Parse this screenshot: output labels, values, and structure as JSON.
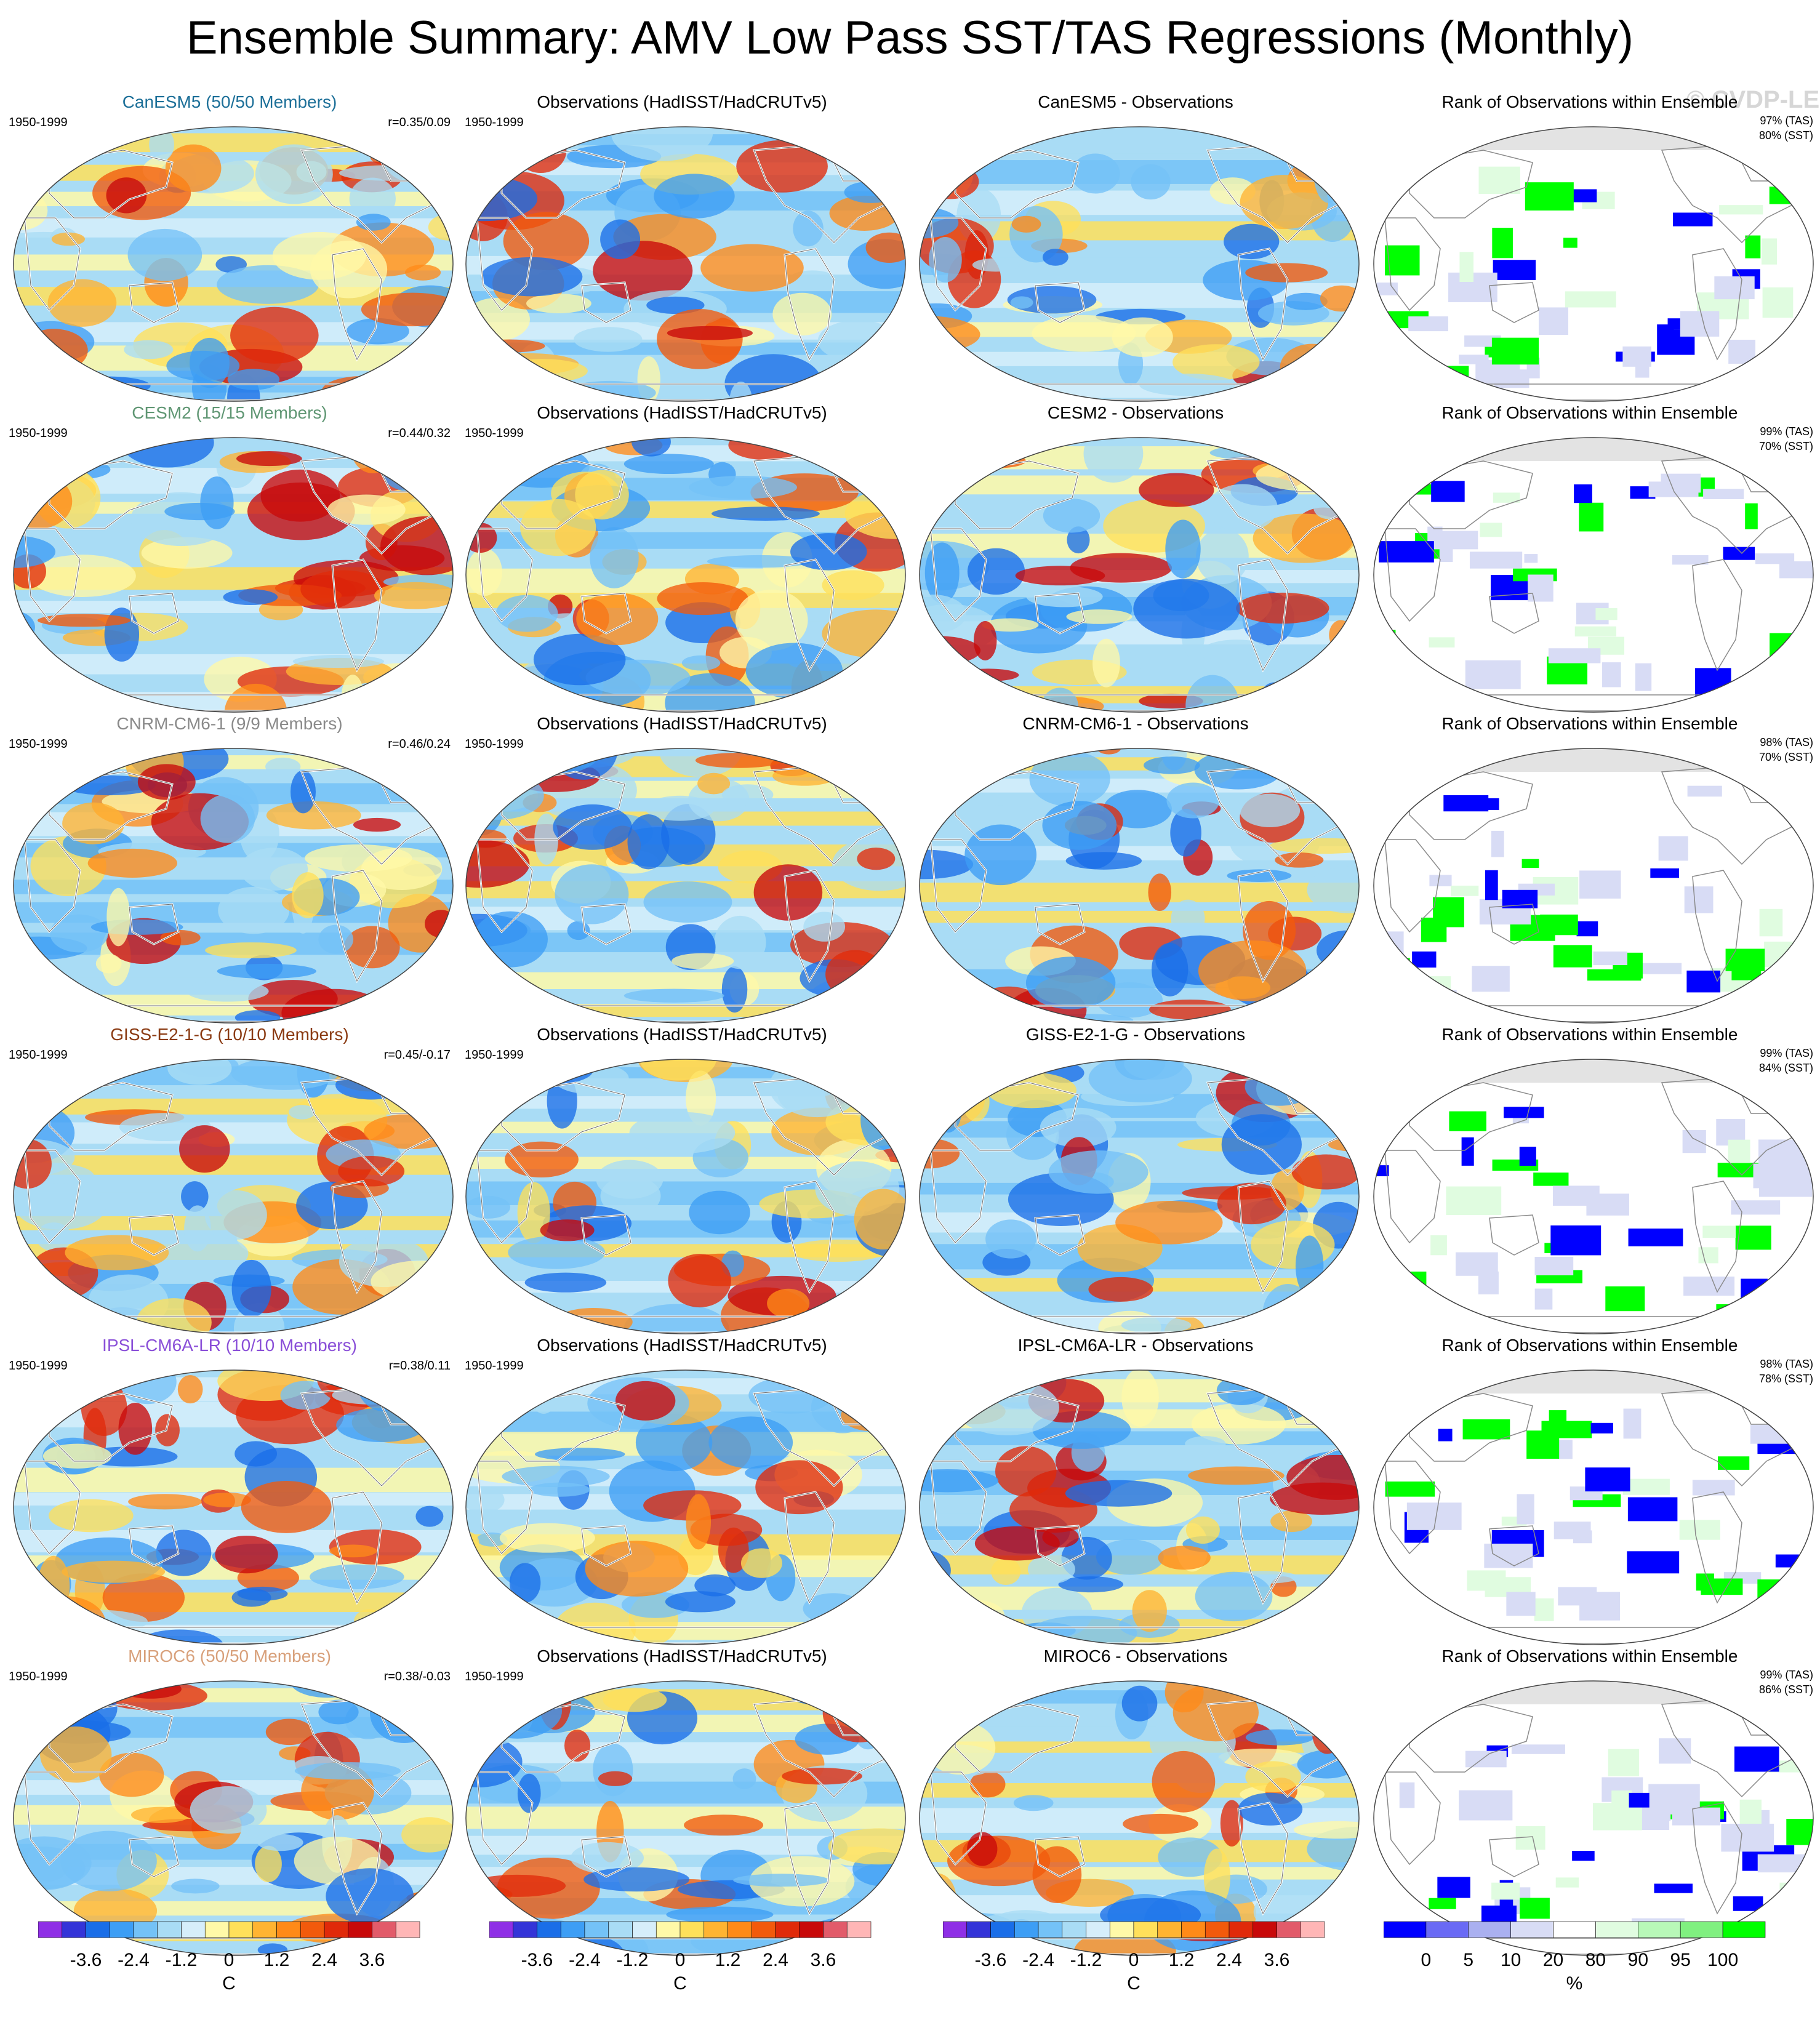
{
  "title": "Ensemble Summary: AMV Low Pass SST/TAS Regressions (Monthly)",
  "watermark": "© CVDP-LE",
  "obs_title": "Observations (HadISST/HadCRUTv5)",
  "rank_title": "Rank of Observations within Ensemble",
  "period": "1950-1999",
  "colors": {
    "diverging": [
      "#8f2fe6",
      "#3434d8",
      "#1a6ee8",
      "#3d9ef5",
      "#74c2f7",
      "#a9dcf5",
      "#d6eefa",
      "#fff9a8",
      "#ffe05a",
      "#ffb432",
      "#ff8a18",
      "#f25a0c",
      "#e02a0a",
      "#c8090a",
      "#e25b6a",
      "#ffb6b6"
    ],
    "rank": [
      "#0000ff",
      "#6a6af5",
      "#aab0f0",
      "#d8dcf5",
      "#ffffff",
      "#e0fce0",
      "#b8f8b8",
      "#80f080",
      "#00ff00"
    ],
    "land_gray": "#e3e3e3"
  },
  "rows": [
    {
      "model": "CanESM5 (50/50 Members)",
      "model_color": "#1c6f98",
      "r": "r=0.35/0.09",
      "diff_title": "CanESM5 - Observations",
      "rank_tas": "97% (TAS)",
      "rank_sst": "80% (SST)"
    },
    {
      "model": "CESM2 (15/15 Members)",
      "model_color": "#5f9673",
      "r": "r=0.44/0.32",
      "diff_title": "CESM2 - Observations",
      "rank_tas": "99% (TAS)",
      "rank_sst": "70% (SST)"
    },
    {
      "model": "CNRM-CM6-1 (9/9 Members)",
      "model_color": "#8a8a8a",
      "r": "r=0.46/0.24",
      "diff_title": "CNRM-CM6-1 - Observations",
      "rank_tas": "98% (TAS)",
      "rank_sst": "70% (SST)"
    },
    {
      "model": "GISS-E2-1-G (10/10 Members)",
      "model_color": "#8a3a12",
      "r": "r=0.45/-0.17",
      "diff_title": "GISS-E2-1-G - Observations",
      "rank_tas": "99% (TAS)",
      "rank_sst": "84% (SST)"
    },
    {
      "model": "IPSL-CM6A-LR (10/10 Members)",
      "model_color": "#8a4fd8",
      "r": "r=0.38/0.11",
      "diff_title": "IPSL-CM6A-LR - Observations",
      "rank_tas": "98% (TAS)",
      "rank_sst": "78% (SST)"
    },
    {
      "model": "MIROC6 (50/50 Members)",
      "model_color": "#d8a07a",
      "r": "r=0.38/-0.03",
      "diff_title": "MIROC6 - Observations",
      "rank_tas": "99% (TAS)",
      "rank_sst": "86% (SST)"
    }
  ],
  "colorbars": {
    "temp": {
      "ticks": [
        "-3.6",
        "-2.4",
        "-1.2",
        "0",
        "1.2",
        "2.4",
        "3.6"
      ],
      "unit": "C"
    },
    "rank": {
      "ticks": [
        "0",
        "5",
        "10",
        "20",
        "80",
        "90",
        "95",
        "100"
      ],
      "unit": "%"
    }
  }
}
